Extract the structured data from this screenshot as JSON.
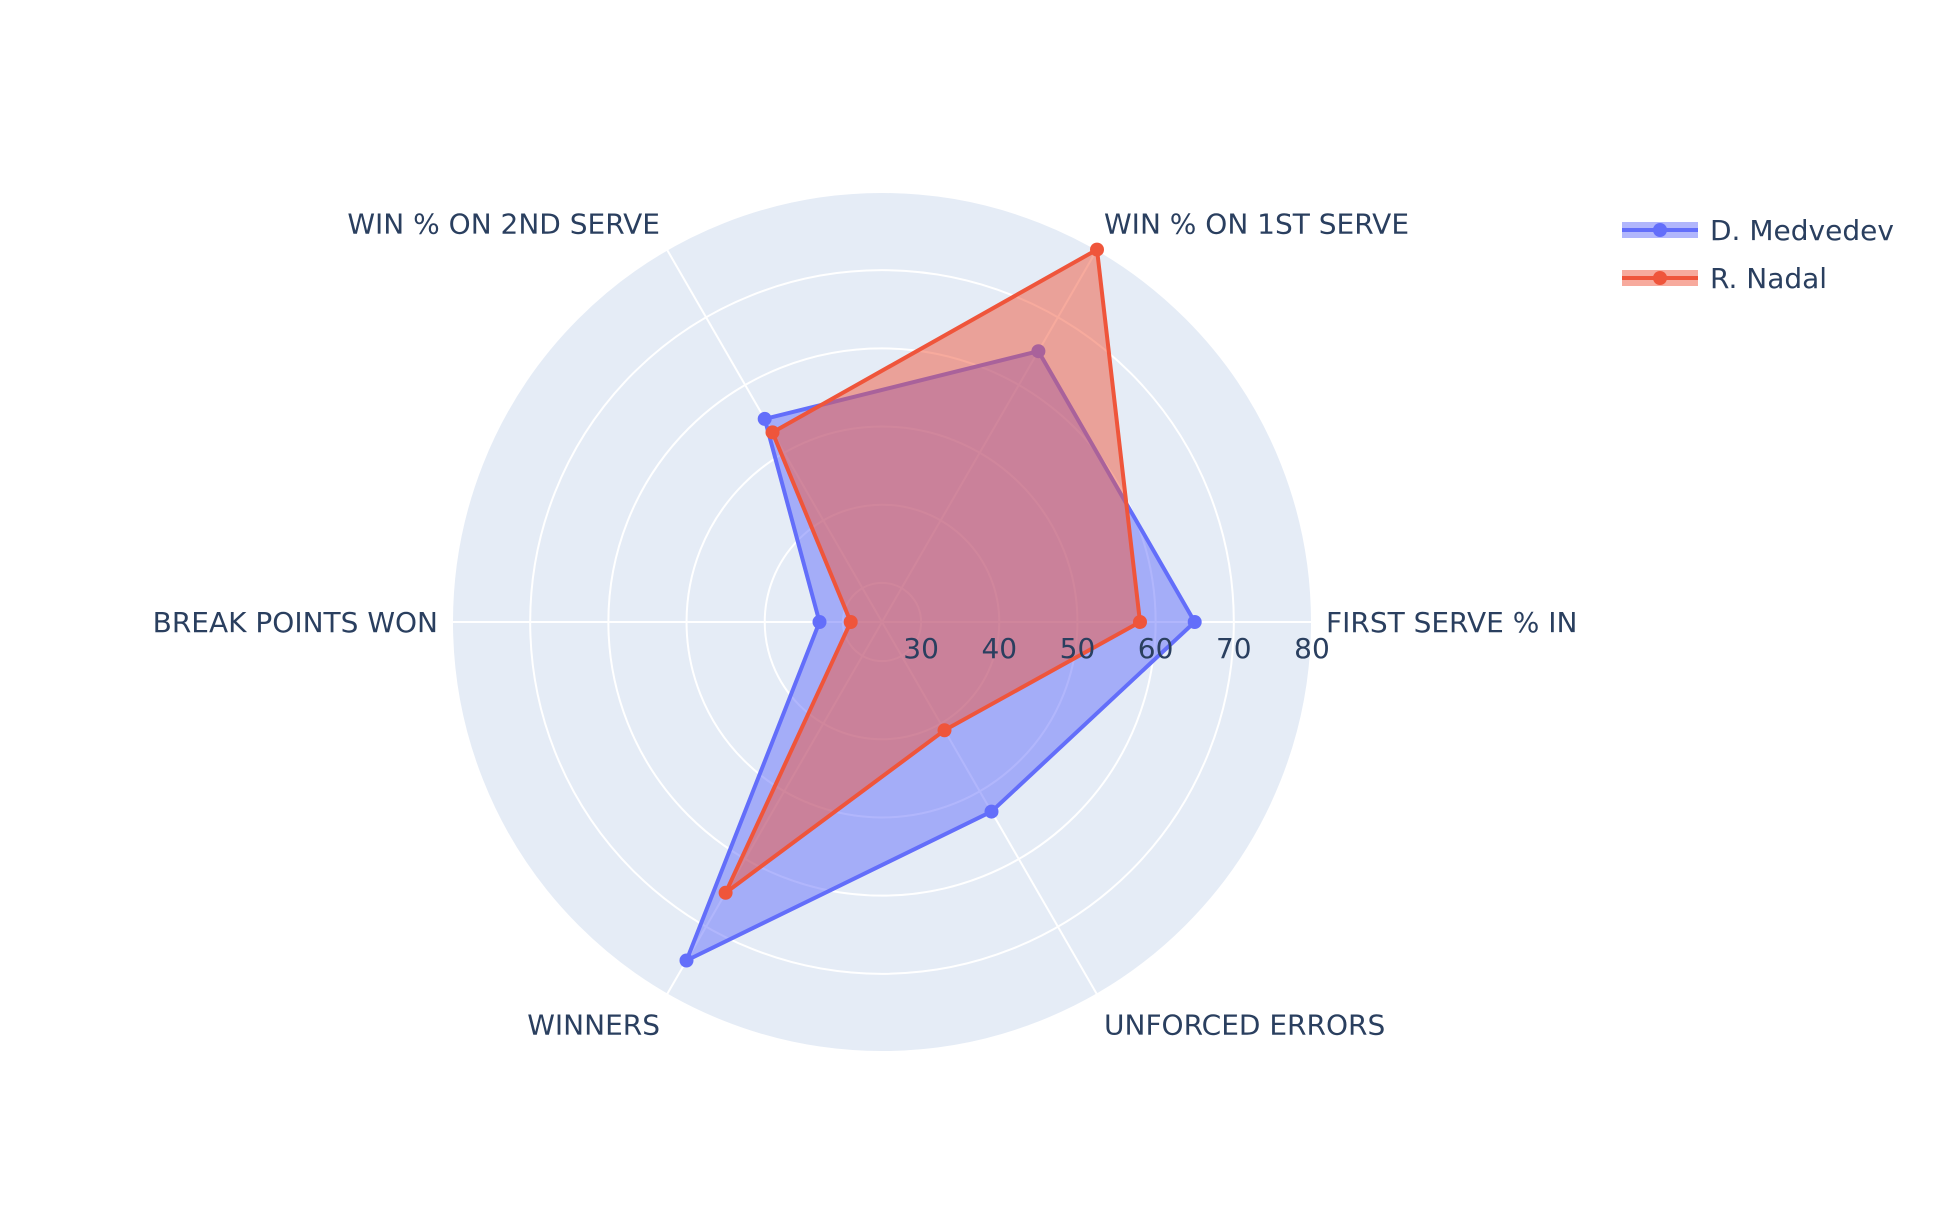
{
  "chart_data": {
    "type": "radar",
    "categories": [
      "FIRST SERVE % IN",
      "WIN % ON 1ST SERVE",
      "WIN % ON 2ND SERVE",
      "BREAK POINTS WON",
      "WINNERS",
      "UNFORCED ERRORS"
    ],
    "radial_range": [
      25,
      80
    ],
    "radial_ticks": [
      "30",
      "40",
      "50",
      "60",
      "70",
      "80"
    ],
    "series": [
      {
        "name": "D. Medvedev",
        "values": [
          65,
          65,
          55,
          33,
          75,
          53
        ],
        "color": "#636efa"
      },
      {
        "name": "R. Nadal",
        "values": [
          58,
          80,
          53,
          29,
          65,
          41
        ],
        "color": "#ef553b"
      }
    ],
    "legend_position": "top-right",
    "polar_background": "#e5ecf6",
    "grid": true
  }
}
